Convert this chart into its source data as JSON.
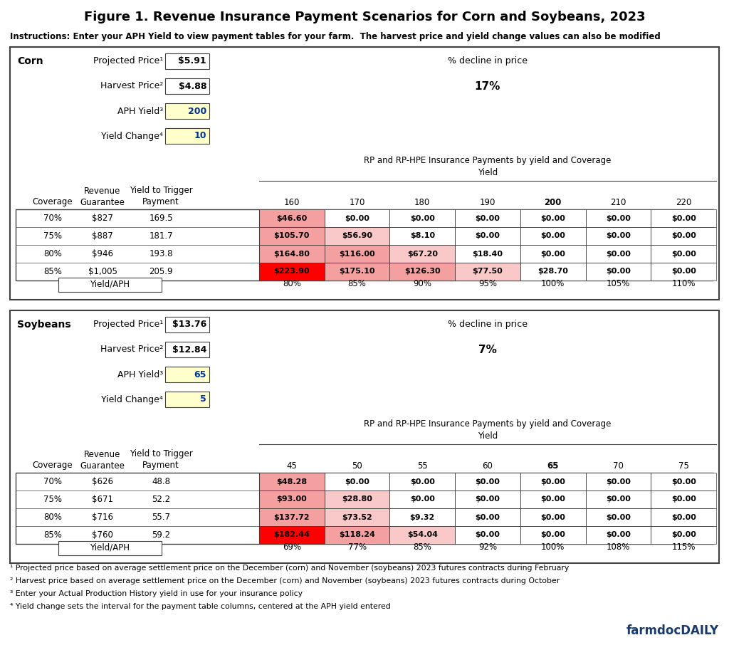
{
  "title": "Figure 1. Revenue Insurance Payment Scenarios for Corn and Soybeans, 2023",
  "instructions": "Instructions: Enter your APH Yield to view payment tables for your farm.  The harvest price and yield change values can also be modified",
  "corn": {
    "label": "Corn",
    "projected_price": "$5.91",
    "harvest_price": "$4.88",
    "aph_yield": "200",
    "yield_change": "10",
    "pct_decline": "17%",
    "subtitle1": "% decline in price",
    "subtitle2": "RP and RP-HPE Insurance Payments by yield and Coverage",
    "subtitle3": "Yield",
    "col_headers": [
      "160",
      "170",
      "180",
      "190",
      "200",
      "210",
      "220"
    ],
    "yield_aph": [
      "80%",
      "85%",
      "90%",
      "95%",
      "100%",
      "105%",
      "110%"
    ],
    "coverage_levels": [
      "70%",
      "75%",
      "80%",
      "85%"
    ],
    "guarantees": [
      "$827",
      "$887",
      "$946",
      "$1,005"
    ],
    "trigger_payments": [
      "169.5",
      "181.7",
      "193.8",
      "205.9"
    ],
    "payment_data": [
      [
        "$46.60",
        "$0.00",
        "$0.00",
        "$0.00",
        "$0.00",
        "$0.00",
        "$0.00"
      ],
      [
        "$105.70",
        "$56.90",
        "$8.10",
        "$0.00",
        "$0.00",
        "$0.00",
        "$0.00"
      ],
      [
        "$164.80",
        "$116.00",
        "$67.20",
        "$18.40",
        "$0.00",
        "$0.00",
        "$0.00"
      ],
      [
        "$223.90",
        "$175.10",
        "$126.30",
        "$77.50",
        "$28.70",
        "$0.00",
        "$0.00"
      ]
    ],
    "cell_colors": [
      [
        "#f4a0a0",
        "#ffffff",
        "#ffffff",
        "#ffffff",
        "#ffffff",
        "#ffffff",
        "#ffffff"
      ],
      [
        "#f4a0a0",
        "#f9c8c8",
        "#ffffff",
        "#ffffff",
        "#ffffff",
        "#ffffff",
        "#ffffff"
      ],
      [
        "#f4a0a0",
        "#f4a0a0",
        "#f9c8c8",
        "#ffffff",
        "#ffffff",
        "#ffffff",
        "#ffffff"
      ],
      [
        "#ff0000",
        "#f4a0a0",
        "#f4a0a0",
        "#f9c8c8",
        "#ffffff",
        "#ffffff",
        "#ffffff"
      ]
    ],
    "aph_col_bold": 4
  },
  "soybeans": {
    "label": "Soybeans",
    "projected_price": "$13.76",
    "harvest_price": "$12.84",
    "aph_yield": "65",
    "yield_change": "5",
    "pct_decline": "7%",
    "subtitle1": "% decline in price",
    "subtitle2": "RP and RP-HPE Insurance Payments by yield and Coverage",
    "subtitle3": "Yield",
    "col_headers": [
      "45",
      "50",
      "55",
      "60",
      "65",
      "70",
      "75"
    ],
    "yield_aph": [
      "69%",
      "77%",
      "85%",
      "92%",
      "100%",
      "108%",
      "115%"
    ],
    "coverage_levels": [
      "70%",
      "75%",
      "80%",
      "85%"
    ],
    "guarantees": [
      "$626",
      "$671",
      "$716",
      "$760"
    ],
    "trigger_payments": [
      "48.8",
      "52.2",
      "55.7",
      "59.2"
    ],
    "payment_data": [
      [
        "$48.28",
        "$0.00",
        "$0.00",
        "$0.00",
        "$0.00",
        "$0.00",
        "$0.00"
      ],
      [
        "$93.00",
        "$28.80",
        "$0.00",
        "$0.00",
        "$0.00",
        "$0.00",
        "$0.00"
      ],
      [
        "$137.72",
        "$73.52",
        "$9.32",
        "$0.00",
        "$0.00",
        "$0.00",
        "$0.00"
      ],
      [
        "$182.44",
        "$118.24",
        "$54.04",
        "$0.00",
        "$0.00",
        "$0.00",
        "$0.00"
      ]
    ],
    "cell_colors": [
      [
        "#f4a0a0",
        "#ffffff",
        "#ffffff",
        "#ffffff",
        "#ffffff",
        "#ffffff",
        "#ffffff"
      ],
      [
        "#f4a0a0",
        "#f9c8c8",
        "#ffffff",
        "#ffffff",
        "#ffffff",
        "#ffffff",
        "#ffffff"
      ],
      [
        "#f4a0a0",
        "#f9c8c8",
        "#ffffff",
        "#ffffff",
        "#ffffff",
        "#ffffff",
        "#ffffff"
      ],
      [
        "#ff0000",
        "#f4a0a0",
        "#f9c8c8",
        "#ffffff",
        "#ffffff",
        "#ffffff",
        "#ffffff"
      ]
    ],
    "aph_col_bold": 4
  },
  "footnotes": [
    "¹ Projected price based on average settlement price on the December (corn) and November (soybeans) 2023 futures contracts during February",
    "² Harvest price based on average settlement price on the December (corn) and November (soybeans) 2023 futures contracts during October",
    "³ Enter your Actual Production History yield in use for your insurance policy",
    "⁴ Yield change sets the interval for the payment table columns, centered at the APH yield entered"
  ],
  "watermark": "farmdocDAILY"
}
